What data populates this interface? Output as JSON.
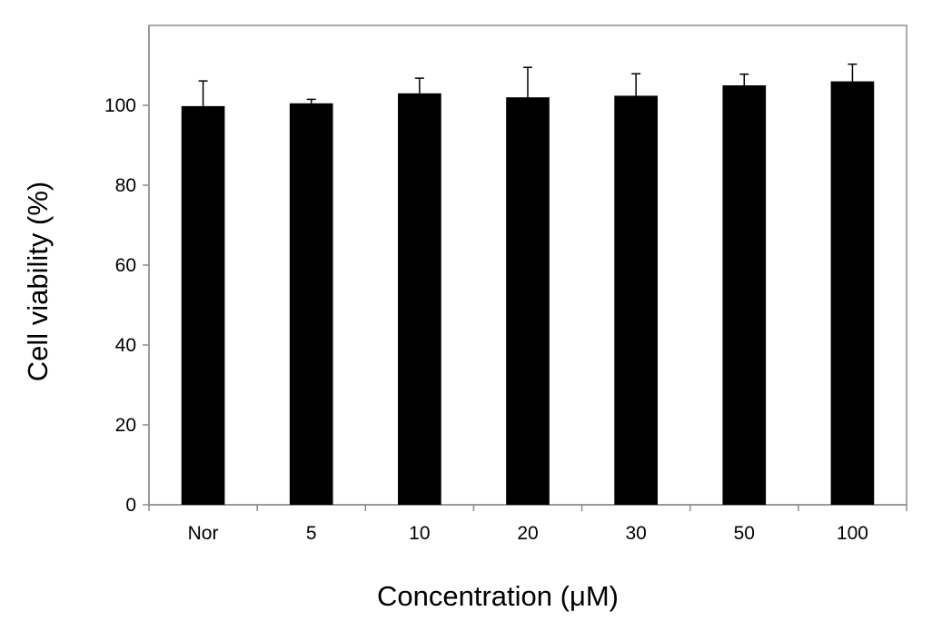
{
  "chart_data": {
    "type": "bar",
    "title": "",
    "xlabel": "Concentration (μM)",
    "ylabel": "Cell viability (%)",
    "categories": [
      "Nor",
      "5",
      "10",
      "20",
      "30",
      "50",
      "100"
    ],
    "values": [
      99.8,
      100.5,
      103,
      102,
      102.4,
      105,
      106
    ],
    "errors": [
      6.3,
      1,
      3.8,
      7.5,
      5.5,
      2.8,
      4.3
    ],
    "ylim": [
      0,
      120
    ],
    "yticks": [
      "0",
      "20",
      "40",
      "60",
      "80",
      "100"
    ],
    "bar_color": "#000000",
    "grid": false,
    "legend": "none"
  }
}
